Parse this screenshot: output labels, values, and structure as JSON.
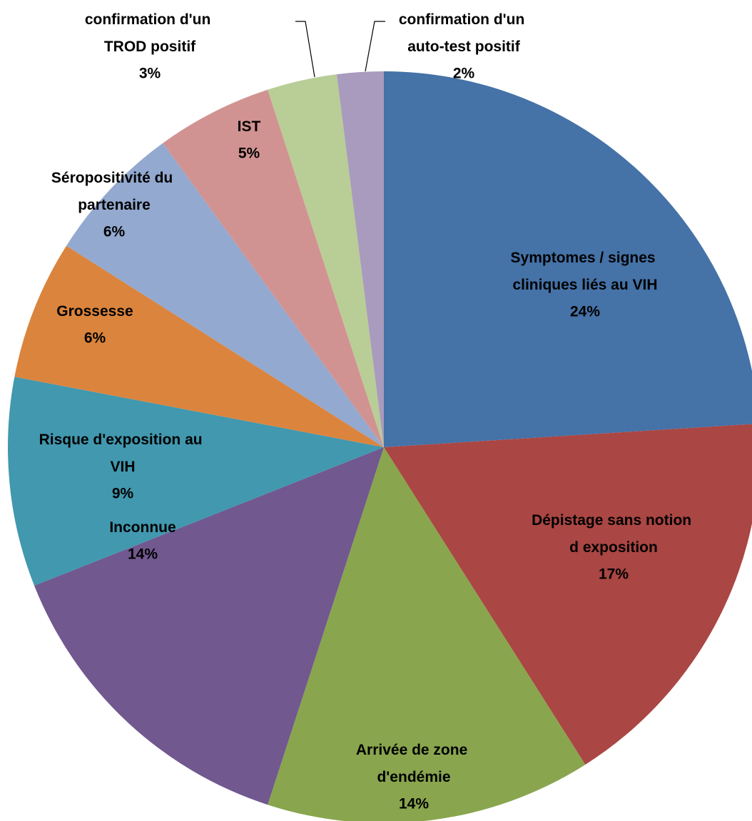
{
  "chart_data": {
    "type": "pie",
    "categories": [
      "Symptomes / signes cliniques liés au VIH",
      "Dépistage sans notion d exposition",
      "Arrivée de zone d'endémie",
      "Inconnue",
      "Risque d'exposition au VIH",
      "Grossesse",
      "Séropositivité du partenaire",
      "IST",
      "confirmation d'un TROD positif",
      "confirmation d'un auto-test positif"
    ],
    "values": [
      24,
      17,
      14,
      14,
      9,
      6,
      6,
      5,
      3,
      2
    ],
    "value_labels": [
      "24%",
      "17%",
      "14%",
      "14%",
      "9%",
      "6%",
      "6%",
      "5%",
      "3%",
      "2%"
    ],
    "colors": [
      "#4572a7",
      "#aa4643",
      "#89a54e",
      "#71588f",
      "#4198af",
      "#db843d",
      "#93a9cf",
      "#d19392",
      "#b9cd96",
      "#a99bbd"
    ]
  }
}
